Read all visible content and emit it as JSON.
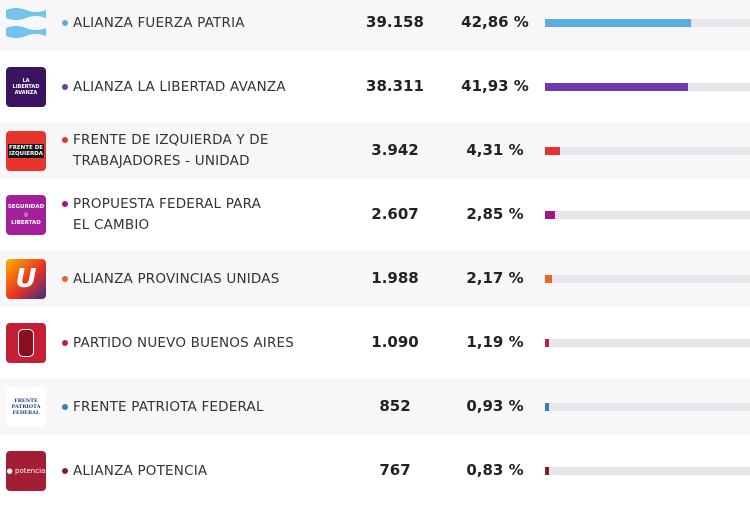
{
  "parties": [
    {
      "name": [
        "ALIANZA FUERZA PATRIA"
      ],
      "votes": "39.158",
      "percent": "42,86 %",
      "share": 42.86,
      "color": "#5aaddf",
      "logo": "argentina-flag"
    },
    {
      "name": [
        "ALIANZA LA LIBERTAD AVANZA"
      ],
      "votes": "38.311",
      "percent": "41,93 %",
      "share": 41.93,
      "color": "#6e3aad",
      "logo": "la-libertad-avanza"
    },
    {
      "name": [
        "FRENTE DE IZQUIERDA Y DE",
        "TRABAJADORES - UNIDAD"
      ],
      "votes": "3.942",
      "percent": "4,31 %",
      "share": 4.31,
      "color": "#e53232",
      "logo": "frente-de-izquierda"
    },
    {
      "name": [
        "PROPUESTA FEDERAL PARA",
        "EL CAMBIO"
      ],
      "votes": "2.607",
      "percent": "2,85 %",
      "share": 2.85,
      "color": "#a0177f",
      "logo": "seguridad-libertad"
    },
    {
      "name": [
        "ALIANZA PROVINCIAS UNIDAS"
      ],
      "votes": "1.988",
      "percent": "2,17 %",
      "share": 2.17,
      "color": "#e8651e",
      "logo": "provincias-unidas"
    },
    {
      "name": [
        "PARTIDO NUEVO BUENOS AIRES"
      ],
      "votes": "1.090",
      "percent": "1,19 %",
      "share": 1.19,
      "color": "#c0203a",
      "logo": "nuevo-buenos-aires"
    },
    {
      "name": [
        "FRENTE PATRIOTA FEDERAL"
      ],
      "votes": "852",
      "percent": "0,93 %",
      "share": 0.93,
      "color": "#2d7fc1",
      "logo": "frente-patriota-federal"
    },
    {
      "name": [
        "ALIANZA POTENCIA"
      ],
      "votes": "767",
      "percent": "0,83 %",
      "share": 0.83,
      "color": "#8c1a2e",
      "logo": "potencia"
    }
  ]
}
